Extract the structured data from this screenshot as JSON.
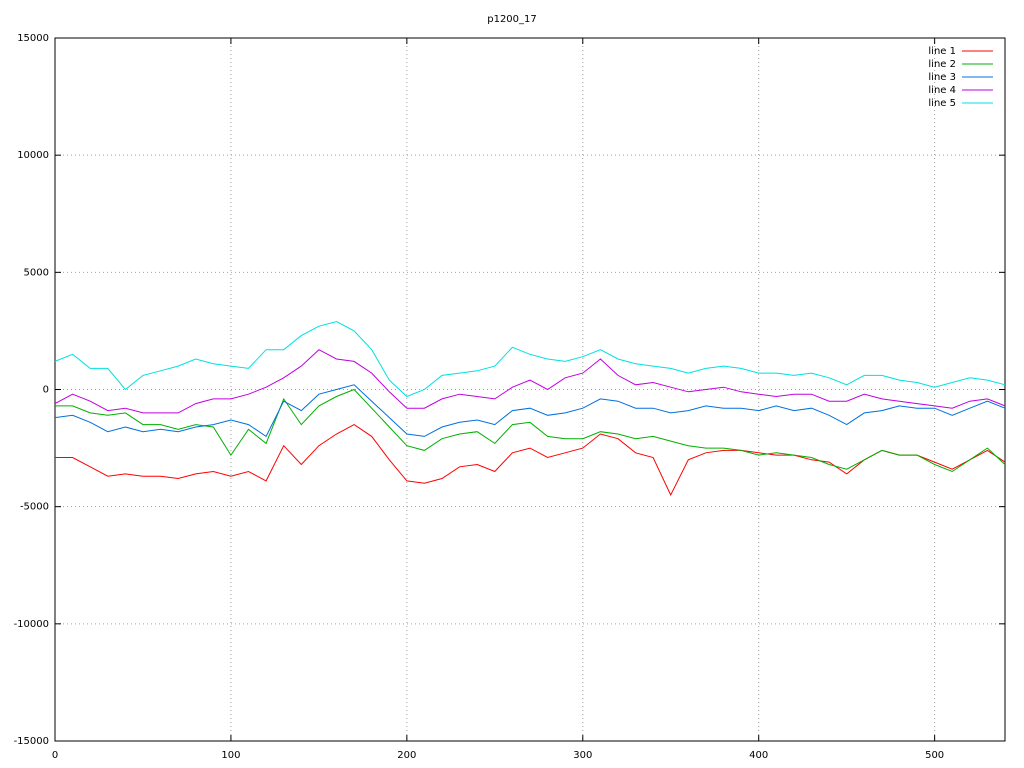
{
  "chart_data": {
    "type": "line",
    "title": "p1200_17",
    "x": [
      0,
      10,
      20,
      30,
      40,
      50,
      60,
      70,
      80,
      90,
      100,
      110,
      120,
      130,
      140,
      150,
      160,
      170,
      180,
      190,
      200,
      210,
      220,
      230,
      240,
      250,
      260,
      270,
      280,
      290,
      300,
      310,
      320,
      330,
      340,
      350,
      360,
      370,
      380,
      390,
      400,
      410,
      420,
      430,
      440,
      450,
      460,
      470,
      480,
      490,
      500,
      510,
      520,
      530,
      540
    ],
    "series": [
      {
        "name": "line 1",
        "color": "#ff0000",
        "values": [
          -2900,
          -2900,
          -3300,
          -3700,
          -3600,
          -3700,
          -3700,
          -3800,
          -3600,
          -3500,
          -3700,
          -3500,
          -3900,
          -2400,
          -3200,
          -2400,
          -1900,
          -1500,
          -2000,
          -3000,
          -3900,
          -4000,
          -3800,
          -3300,
          -3200,
          -3500,
          -2700,
          -2500,
          -2900,
          -2700,
          -2500,
          -1900,
          -2100,
          -2700,
          -2900,
          -4500,
          -3000,
          -2700,
          -2600,
          -2600,
          -2700,
          -2800,
          -2800,
          -3000,
          -3100,
          -3600,
          -3000,
          -2600,
          -2800,
          -2800,
          -3100,
          -3400,
          -3000,
          -2600,
          -3100
        ]
      },
      {
        "name": "line 2",
        "color": "#00b000",
        "values": [
          -700,
          -700,
          -1000,
          -1100,
          -1000,
          -1500,
          -1500,
          -1700,
          -1500,
          -1600,
          -2800,
          -1700,
          -2300,
          -400,
          -1500,
          -700,
          -300,
          0,
          -800,
          -1600,
          -2400,
          -2600,
          -2100,
          -1900,
          -1800,
          -2300,
          -1500,
          -1400,
          -2000,
          -2100,
          -2100,
          -1800,
          -1900,
          -2100,
          -2000,
          -2200,
          -2400,
          -2500,
          -2500,
          -2600,
          -2800,
          -2700,
          -2800,
          -2900,
          -3200,
          -3400,
          -3000,
          -2600,
          -2800,
          -2800,
          -3200,
          -3500,
          -3000,
          -2500,
          -3200
        ]
      },
      {
        "name": "line 3",
        "color": "#0070e0",
        "values": [
          -1200,
          -1100,
          -1400,
          -1800,
          -1600,
          -1800,
          -1700,
          -1800,
          -1600,
          -1500,
          -1300,
          -1500,
          -2000,
          -500,
          -900,
          -200,
          0,
          200,
          -500,
          -1200,
          -1900,
          -2000,
          -1600,
          -1400,
          -1300,
          -1500,
          -900,
          -800,
          -1100,
          -1000,
          -800,
          -400,
          -500,
          -800,
          -800,
          -1000,
          -900,
          -700,
          -800,
          -800,
          -900,
          -700,
          -900,
          -800,
          -1100,
          -1500,
          -1000,
          -900,
          -700,
          -800,
          -800,
          -1100,
          -800,
          -500,
          -800
        ]
      },
      {
        "name": "line 4",
        "color": "#c000e0",
        "values": [
          -600,
          -200,
          -500,
          -900,
          -800,
          -1000,
          -1000,
          -1000,
          -600,
          -400,
          -400,
          -200,
          100,
          500,
          1000,
          1700,
          1300,
          1200,
          700,
          -100,
          -800,
          -800,
          -400,
          -200,
          -300,
          -400,
          100,
          400,
          0,
          500,
          700,
          1300,
          600,
          200,
          300,
          100,
          -100,
          0,
          100,
          -100,
          -200,
          -300,
          -200,
          -200,
          -500,
          -500,
          -200,
          -400,
          -500,
          -600,
          -700,
          -800,
          -500,
          -400,
          -700
        ]
      },
      {
        "name": "line 5",
        "color": "#00e0e0",
        "values": [
          1200,
          1500,
          900,
          900,
          0,
          600,
          800,
          1000,
          1300,
          1100,
          1000,
          900,
          1700,
          1700,
          2300,
          2700,
          2900,
          2500,
          1700,
          400,
          -300,
          0,
          600,
          700,
          800,
          1000,
          1800,
          1500,
          1300,
          1200,
          1400,
          1700,
          1300,
          1100,
          1000,
          900,
          700,
          900,
          1000,
          900,
          700,
          700,
          600,
          700,
          500,
          200,
          600,
          600,
          400,
          300,
          100,
          300,
          500,
          400,
          200
        ]
      }
    ],
    "xlim": [
      0,
      540
    ],
    "xticks": [
      0,
      100,
      200,
      300,
      400,
      500
    ],
    "ylim": [
      -15000,
      15000
    ],
    "yticks": [
      -15000,
      -10000,
      -5000,
      0,
      5000,
      10000,
      15000
    ],
    "grid": true,
    "legend": "top-right"
  }
}
